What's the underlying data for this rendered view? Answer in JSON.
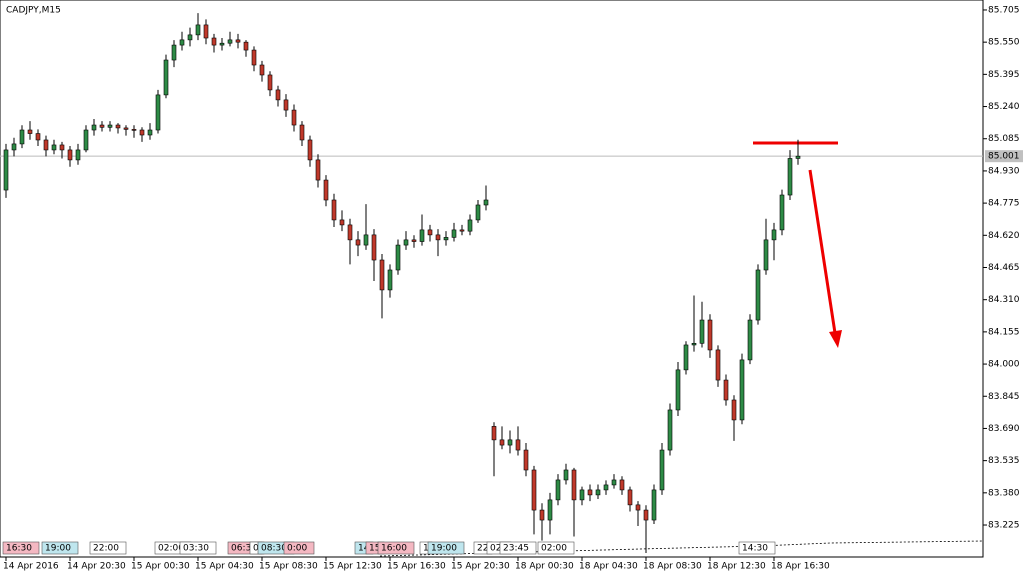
{
  "chart_data": {
    "type": "candlestick",
    "title": "CADJPY,M15",
    "ylim": [
      83.071,
      85.753
    ],
    "yticks": [
      85.705,
      {
        "value": 85.55,
        "label": "85.550"
      },
      85.395,
      {
        "value": 85.24,
        "label": "85.240"
      },
      85.085,
      {
        "value": 84.93,
        "label": "84.930"
      },
      84.775,
      {
        "value": 84.62,
        "label": "84.620"
      },
      84.465,
      {
        "value": 84.31,
        "label": "84.310"
      },
      84.155,
      {
        "value": 84,
        "label": "84.000"
      },
      83.845,
      {
        "value": 83.69,
        "label": "83.690"
      },
      83.535,
      {
        "value": 83.38,
        "label": "83.380"
      },
      83.225
    ],
    "current_price": {
      "value": 85.001,
      "label": "85.001"
    },
    "bull_color": "#2e8b46",
    "bear_color": "#c0392b",
    "wick_color": "#000000",
    "categories": [
      "14 Apr 2016",
      null,
      null,
      null,
      null,
      null,
      null,
      null,
      "14 Apr 20:30",
      null,
      null,
      null,
      null,
      null,
      null,
      null,
      "15 Apr 00:30",
      null,
      null,
      null,
      null,
      null,
      null,
      null,
      "15 Apr 04:30",
      null,
      null,
      null,
      null,
      null,
      null,
      null,
      "15 Apr 08:30",
      null,
      null,
      null,
      null,
      null,
      null,
      null,
      "15 Apr 12:30",
      null,
      null,
      null,
      null,
      null,
      null,
      null,
      "15 Apr 16:30",
      null,
      null,
      null,
      null,
      null,
      null,
      null,
      "15 Apr 20:30",
      null,
      null,
      null,
      null,
      null,
      null,
      null,
      "18 Apr 00:30",
      null,
      null,
      null,
      null,
      null,
      null,
      null,
      "18 Apr 04:30",
      null,
      null,
      null,
      null,
      null,
      null,
      null,
      "18 Apr 08:30",
      null,
      null,
      null,
      null,
      null,
      null,
      null,
      "18 Apr 12:30",
      null,
      null,
      null,
      null,
      null,
      null,
      null,
      "18 Apr 16:30",
      null,
      null,
      null
    ],
    "ohlc": [
      [
        84.838,
        85.06,
        84.8,
        85.031
      ],
      [
        85.031,
        85.09,
        85.0,
        85.06
      ],
      [
        85.06,
        85.15,
        85.04,
        85.127
      ],
      [
        85.127,
        85.17,
        85.08,
        85.11
      ],
      [
        85.11,
        85.13,
        85.05,
        85.079
      ],
      [
        85.079,
        85.1,
        85.0,
        85.031
      ],
      [
        85.031,
        85.08,
        85.01,
        85.055
      ],
      [
        85.055,
        85.07,
        84.99,
        85.031
      ],
      [
        85.031,
        85.05,
        84.95,
        84.983
      ],
      [
        84.983,
        85.06,
        84.96,
        85.031
      ],
      [
        85.031,
        85.15,
        85.02,
        85.127
      ],
      [
        85.127,
        85.18,
        85.1,
        85.151
      ],
      [
        85.151,
        85.17,
        85.12,
        85.14
      ],
      [
        85.14,
        85.17,
        85.12,
        85.151
      ],
      [
        85.151,
        85.16,
        85.11,
        85.137
      ],
      [
        85.137,
        85.15,
        85.1,
        85.13
      ],
      [
        85.13,
        85.15,
        85.09,
        85.127
      ],
      [
        85.127,
        85.14,
        85.07,
        85.103
      ],
      [
        85.103,
        85.16,
        85.08,
        85.127
      ],
      [
        85.127,
        85.32,
        85.11,
        85.296
      ],
      [
        85.296,
        85.49,
        85.28,
        85.464
      ],
      [
        85.464,
        85.56,
        85.43,
        85.536
      ],
      [
        85.536,
        85.6,
        85.51,
        85.561
      ],
      [
        85.561,
        85.62,
        85.53,
        85.585
      ],
      [
        85.585,
        85.69,
        85.56,
        85.633
      ],
      [
        85.633,
        85.66,
        85.54,
        85.57
      ],
      [
        85.57,
        85.59,
        85.5,
        85.536
      ],
      [
        85.536,
        85.57,
        85.51,
        85.545
      ],
      [
        85.545,
        85.6,
        85.53,
        85.561
      ],
      [
        85.561,
        85.59,
        85.52,
        85.55
      ],
      [
        85.55,
        85.56,
        85.48,
        85.512
      ],
      [
        85.512,
        85.53,
        85.41,
        85.44
      ],
      [
        85.44,
        85.46,
        85.36,
        85.392
      ],
      [
        85.392,
        85.41,
        85.29,
        85.32
      ],
      [
        85.32,
        85.34,
        85.24,
        85.272
      ],
      [
        85.272,
        85.3,
        85.19,
        85.223
      ],
      [
        85.223,
        85.25,
        85.12,
        85.151
      ],
      [
        85.151,
        85.17,
        85.05,
        85.079
      ],
      [
        85.079,
        85.1,
        84.95,
        84.983
      ],
      [
        84.983,
        85.01,
        84.85,
        84.886
      ],
      [
        84.886,
        84.91,
        84.76,
        84.79
      ],
      [
        84.79,
        84.82,
        84.66,
        84.694
      ],
      [
        84.694,
        84.74,
        84.64,
        84.67
      ],
      [
        84.67,
        84.7,
        84.48,
        84.598
      ],
      [
        84.598,
        84.64,
        84.52,
        84.573
      ],
      [
        84.573,
        84.77,
        84.55,
        84.622
      ],
      [
        84.622,
        84.65,
        84.4,
        84.501
      ],
      [
        84.501,
        84.53,
        84.22,
        84.357
      ],
      [
        84.357,
        84.48,
        84.32,
        84.453
      ],
      [
        84.453,
        84.6,
        84.43,
        84.573
      ],
      [
        84.573,
        84.64,
        84.55,
        84.598
      ],
      [
        84.598,
        84.62,
        84.56,
        84.59
      ],
      [
        84.59,
        84.72,
        84.57,
        84.646
      ],
      [
        84.646,
        84.67,
        84.59,
        84.622
      ],
      [
        84.622,
        84.65,
        84.52,
        84.598
      ],
      [
        84.598,
        84.64,
        84.57,
        84.61
      ],
      [
        84.61,
        84.68,
        84.59,
        84.646
      ],
      [
        84.646,
        84.67,
        84.62,
        84.64
      ],
      [
        84.64,
        84.72,
        84.62,
        84.694
      ],
      [
        84.694,
        84.79,
        84.68,
        84.766
      ],
      [
        84.766,
        84.86,
        84.74,
        84.79
      ],
      [
        83.7,
        83.72,
        83.46,
        83.635
      ],
      [
        83.635,
        83.7,
        83.59,
        83.61
      ],
      [
        83.61,
        83.68,
        83.57,
        83.635
      ],
      [
        83.635,
        83.7,
        83.56,
        83.586
      ],
      [
        83.586,
        83.62,
        83.46,
        83.49
      ],
      [
        83.49,
        83.51,
        83.18,
        83.297
      ],
      [
        83.297,
        83.33,
        83.15,
        83.249
      ],
      [
        83.249,
        83.38,
        83.18,
        83.346
      ],
      [
        83.346,
        83.47,
        83.32,
        83.442
      ],
      [
        83.442,
        83.52,
        83.42,
        83.49
      ],
      [
        83.49,
        83.5,
        83.17,
        83.346
      ],
      [
        83.346,
        83.41,
        83.32,
        83.394
      ],
      [
        83.394,
        83.42,
        83.34,
        83.37
      ],
      [
        83.37,
        83.42,
        83.35,
        83.394
      ],
      [
        83.394,
        83.44,
        83.37,
        83.418
      ],
      [
        83.418,
        83.47,
        83.4,
        83.442
      ],
      [
        83.442,
        83.46,
        83.37,
        83.394
      ],
      [
        83.394,
        83.41,
        83.29,
        83.322
      ],
      [
        83.322,
        83.34,
        83.22,
        83.297
      ],
      [
        83.297,
        83.32,
        83.09,
        83.249
      ],
      [
        83.249,
        83.42,
        83.23,
        83.394
      ],
      [
        83.394,
        83.62,
        83.37,
        83.586
      ],
      [
        83.586,
        83.81,
        83.56,
        83.779
      ],
      [
        83.779,
        84.01,
        83.75,
        83.972
      ],
      [
        83.972,
        84.11,
        83.95,
        84.092
      ],
      [
        84.092,
        84.33,
        84.06,
        84.1
      ],
      [
        84.1,
        84.3,
        84.08,
        84.212
      ],
      [
        84.212,
        84.24,
        84.03,
        84.068
      ],
      [
        84.068,
        84.09,
        83.89,
        83.923
      ],
      [
        83.923,
        83.95,
        83.8,
        83.827
      ],
      [
        83.827,
        83.85,
        83.63,
        83.731
      ],
      [
        83.731,
        84.05,
        83.71,
        84.02
      ],
      [
        84.02,
        84.24,
        84.0,
        84.212
      ],
      [
        84.212,
        84.48,
        84.19,
        84.453
      ],
      [
        84.453,
        84.7,
        84.43,
        84.598
      ],
      [
        84.598,
        84.68,
        84.5,
        84.646
      ],
      [
        84.646,
        84.84,
        84.62,
        84.814
      ],
      [
        84.814,
        85.03,
        84.79,
        84.99
      ],
      [
        84.99,
        85.08,
        84.96,
        85.001
      ]
    ],
    "event_tags": [
      {
        "label": "16:30",
        "color": "#f4b8c2"
      },
      {
        "label": "19:00",
        "color": "#bfe6ee"
      },
      {
        "label": "22:00",
        "color": "#ffffff"
      },
      {
        "label": "02:00",
        "color": "#ffffff"
      },
      {
        "label": "03:30",
        "color": "#ffffff"
      },
      {
        "label": "06:30",
        "color": "#f4b8c2"
      },
      {
        "label": "0",
        "color": "#ffffff"
      },
      {
        "label": "08:30",
        "color": "#bfe6ee"
      },
      {
        "label": "0:00",
        "color": "#f4b8c2"
      },
      {
        "label": "14",
        "color": "#bfe6ee"
      },
      {
        "label": "15",
        "color": "#f4b8c2"
      },
      {
        "label": "16:00",
        "color": "#f4b8c2"
      },
      {
        "label": "1",
        "color": "#ffffff"
      },
      {
        "label": "19:00",
        "color": "#bfe6ee"
      },
      {
        "label": "22",
        "color": "#ffffff"
      },
      {
        "label": "02:",
        "color": "#ffffff"
      },
      {
        "label": "23:45",
        "color": "#ffffff"
      },
      {
        "label": "02:00",
        "color": "#ffffff"
      },
      {
        "label": "14:30",
        "color": "#ffffff"
      }
    ]
  }
}
